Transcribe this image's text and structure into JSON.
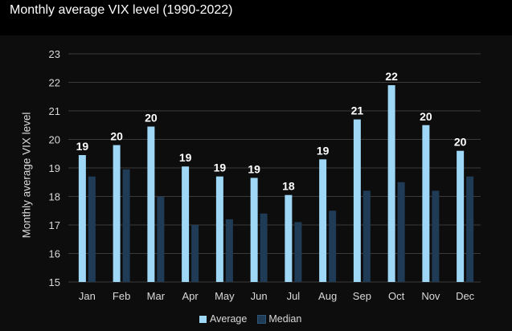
{
  "title": "Monthly average VIX level (1990-2022)",
  "chart_data": {
    "type": "bar",
    "title": "Monthly average VIX level (1990-2022)",
    "xlabel": "",
    "ylabel": "Monthly average  VIX  level",
    "ylim": [
      15,
      23
    ],
    "yticks": [
      15,
      16,
      17,
      18,
      19,
      20,
      21,
      22,
      23
    ],
    "grid": true,
    "legend_position": "bottom",
    "categories": [
      "Jan",
      "Feb",
      "Mar",
      "Apr",
      "May",
      "Jun",
      "Jul",
      "Aug",
      "Sep",
      "Oct",
      "Nov",
      "Dec"
    ],
    "series": [
      {
        "name": "Average",
        "color": "#9fd8f7",
        "values": [
          19.45,
          19.8,
          20.45,
          19.05,
          18.7,
          18.65,
          18.05,
          19.3,
          20.7,
          21.9,
          20.5,
          19.6
        ],
        "data_labels": [
          "19",
          "20",
          "20",
          "19",
          "19",
          "19",
          "18",
          "19",
          "21",
          "22",
          "20",
          "20"
        ]
      },
      {
        "name": "Median",
        "color": "#1f3b55",
        "values": [
          18.7,
          18.95,
          18.0,
          17.0,
          17.2,
          17.4,
          17.1,
          17.5,
          18.2,
          18.5,
          18.2,
          18.7
        ]
      }
    ]
  }
}
